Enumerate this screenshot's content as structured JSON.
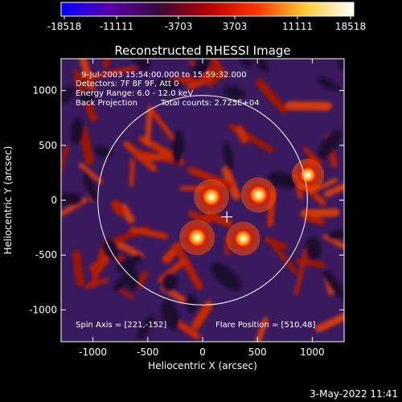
{
  "colorbar": {
    "ticks": [
      "-18518",
      "-11111",
      "-3703",
      "3703",
      "11111",
      "18518"
    ],
    "colors": [
      "#0000ff",
      "#5a00a8",
      "#3a0a3a",
      "#b30000",
      "#ff3300",
      "#ffcc33",
      "#ffffff"
    ]
  },
  "chart_data": {
    "type": "heatmap",
    "title": "Reconstructed RHESSI Image",
    "xlabel": "Heliocentric X (arcsec)",
    "ylabel": "Heliocentric Y (arcsec)",
    "xlim": [
      -1290,
      1290
    ],
    "ylim": [
      -1290,
      1290
    ],
    "xticks": [
      "-1000",
      "-500",
      "0",
      "500",
      "1000"
    ],
    "yticks": [
      "-1000",
      "-500",
      "0",
      "500",
      "1000"
    ],
    "solar_limb_radius": 955,
    "sources": [
      {
        "x": 80,
        "y": 30,
        "intensity": 18518
      },
      {
        "x": 510,
        "y": 48,
        "intensity": 18518
      },
      {
        "x": -50,
        "y": -340,
        "intensity": 18518
      },
      {
        "x": 370,
        "y": -350,
        "intensity": 16000
      },
      {
        "x": 960,
        "y": 230,
        "intensity": 13000
      }
    ],
    "crosshair": {
      "x": 221,
      "y": -152
    }
  },
  "annotations": {
    "time_range": "9-Jul-2003 15:54:00.000 to 15:59:32.000",
    "detectors": "Detectors: 7F 8F 9F, Att 0",
    "energy_range": "Energy Range: 6.0 - 12.0 keV",
    "method": "Back Projection",
    "total_counts": "Total counts: 2.725E+04",
    "spin_axis": "Spin Axis = [221,-152]",
    "flare_position": "Flare Position = [510,48]"
  },
  "footer": {
    "date": "3-May-2022 11:41"
  }
}
